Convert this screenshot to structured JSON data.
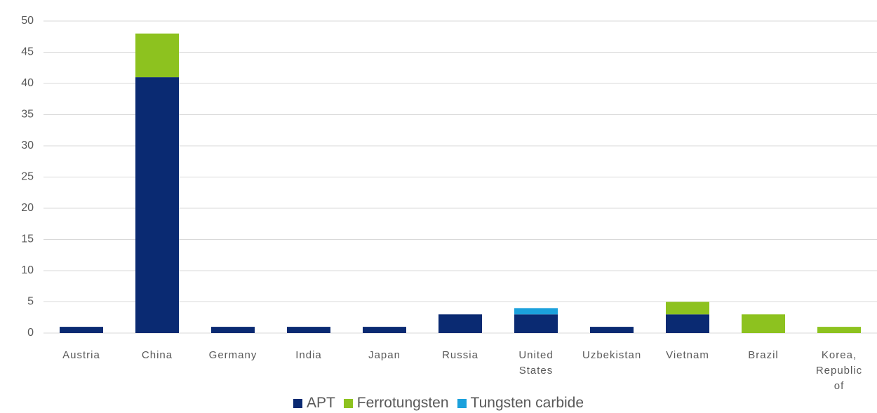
{
  "chart_data": {
    "type": "bar",
    "stacked": true,
    "categories": [
      "Austria",
      "China",
      "Germany",
      "India",
      "Japan",
      "Russia",
      "United States",
      "Uzbekistan",
      "Vietnam",
      "Brazil",
      "Korea, Republic of"
    ],
    "series": [
      {
        "name": "APT",
        "color": "#0a2a72",
        "values": [
          1,
          41,
          1,
          1,
          1,
          3,
          3,
          1,
          3,
          0,
          0
        ]
      },
      {
        "name": "Ferrotungsten",
        "color": "#8dc21f",
        "values": [
          0,
          7,
          0,
          0,
          0,
          0,
          0,
          0,
          2,
          3,
          1
        ]
      },
      {
        "name": "Tungsten carbide",
        "color": "#1ba1dc",
        "values": [
          0,
          0,
          0,
          0,
          0,
          0,
          1,
          0,
          0,
          0,
          0
        ]
      }
    ],
    "ylim": [
      0,
      50
    ],
    "yticks": [
      0,
      5,
      10,
      15,
      20,
      25,
      30,
      35,
      40,
      45,
      50
    ],
    "grid": true,
    "legend": "bottom"
  }
}
